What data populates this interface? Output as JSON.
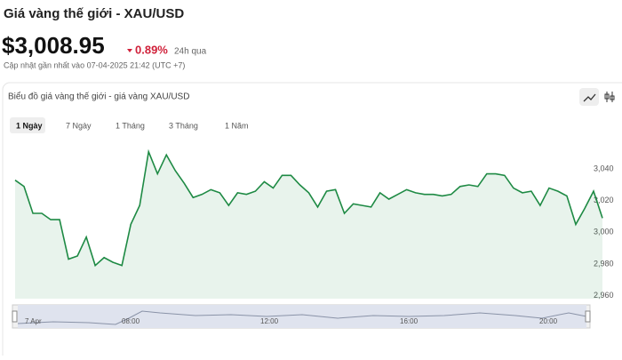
{
  "header": {
    "title": "Giá vàng thế giới - XAU/USD",
    "price": "$3,008.95",
    "change": "0.89%",
    "period": "24h qua",
    "updated": "Cập nhật gần nhất vào 07-04-2025 21:42 (UTC +7)"
  },
  "card": {
    "title": "Biểu đồ giá vàng thế giới - giá vàng XAU/USD",
    "tabs": [
      "1 Ngày",
      "7 Ngày",
      "1 Tháng",
      "3 Tháng",
      "1 Năm"
    ]
  },
  "chart_data": {
    "type": "line",
    "color": "#1e8a44",
    "values": [
      3033,
      3029,
      3012,
      3012,
      3008,
      3008,
      2983,
      2985,
      2997,
      2979,
      2984,
      2981,
      2979,
      3005,
      3017,
      3051,
      3037,
      3049,
      3039,
      3031,
      3022,
      3024,
      3027,
      3025,
      3017,
      3025,
      3024,
      3026,
      3032,
      3028,
      3036,
      3036,
      3030,
      3025,
      3016,
      3026,
      3027,
      3012,
      3018,
      3017,
      3016,
      3025,
      3021,
      3024,
      3027,
      3025,
      3024,
      3024,
      3023,
      3024,
      3029,
      3030,
      3029,
      3037,
      3037,
      3036,
      3028,
      3025,
      3026,
      3017,
      3028,
      3026,
      3023,
      3005,
      3015,
      3026,
      3009
    ],
    "ylim": [
      2958,
      3057
    ],
    "yticks": [
      {
        "value": 2960,
        "label": "2,960"
      },
      {
        "value": 2980,
        "label": "2,980"
      },
      {
        "value": 3000,
        "label": "3,000"
      },
      {
        "value": 3020,
        "label": "3,020"
      },
      {
        "value": 3040,
        "label": "3,040"
      }
    ]
  },
  "navigator": {
    "labels": [
      "7 Apr",
      "08:00",
      "12:00",
      "16:00",
      "20:00"
    ]
  }
}
